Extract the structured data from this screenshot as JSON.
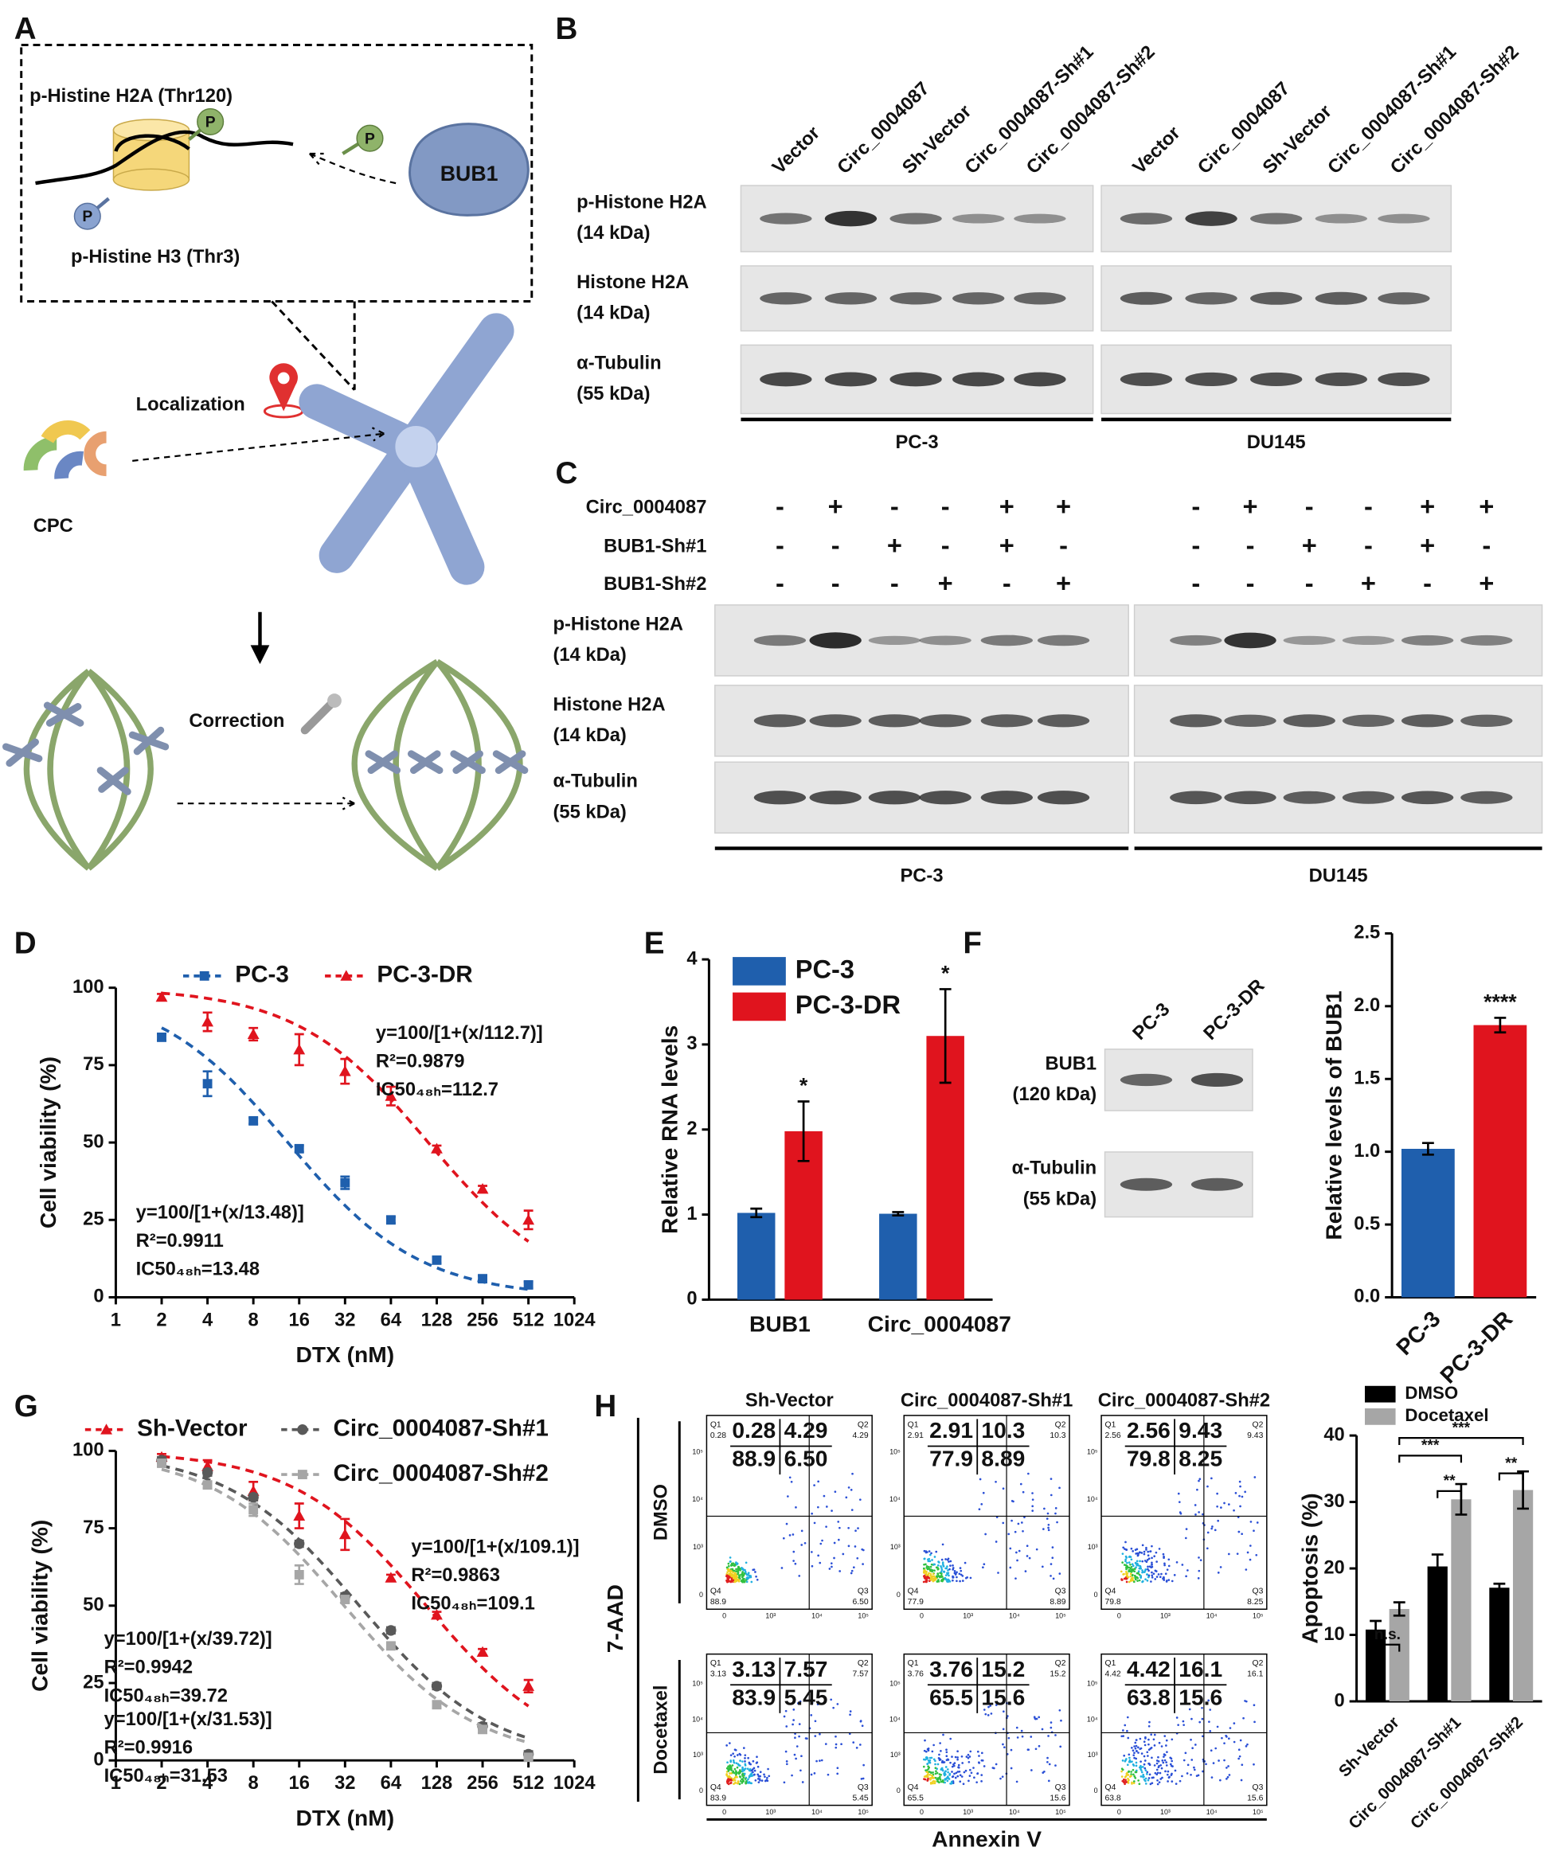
{
  "panel_a": {
    "label": "A",
    "texts": {
      "h2a": "p-Histine H2A (Thr120)",
      "h3": "p-Histine H3 (Thr3)",
      "p": "P",
      "bub1": "BUB1",
      "localization": "Localization",
      "cpc": "CPC",
      "correction": "Correction"
    }
  },
  "panel_b": {
    "label": "B",
    "lanes": [
      "Vector",
      "Circ_0004087",
      "Sh-Vector",
      "Circ_0004087-Sh#1",
      "Circ_0004087-Sh#2"
    ],
    "rows": [
      [
        "p-Histone H2A",
        "(14 kDa)"
      ],
      [
        "Histone H2A",
        "(14 kDa)"
      ],
      [
        "α-Tubulin",
        "(55 kDa)"
      ]
    ],
    "cell_lines": [
      "PC-3",
      "DU145"
    ]
  },
  "panel_c": {
    "label": "C",
    "conditions": [
      {
        "name": "Circ_0004087",
        "signs": [
          "-",
          "+",
          "-",
          "-",
          "+",
          "+"
        ]
      },
      {
        "name": "BUB1-Sh#1",
        "signs": [
          "-",
          "-",
          "+",
          "-",
          "+",
          "-"
        ]
      },
      {
        "name": "BUB1-Sh#2",
        "signs": [
          "-",
          "-",
          "-",
          "+",
          "-",
          "+"
        ]
      }
    ],
    "rows": [
      [
        "p-Histone H2A",
        "(14 kDa)"
      ],
      [
        "Histone H2A",
        "(14 kDa)"
      ],
      [
        "α-Tubulin",
        "(55 kDa)"
      ]
    ],
    "cell_lines": [
      "PC-3",
      "DU145"
    ]
  },
  "panel_f_blot": {
    "lanes": [
      "PC-3",
      "PC-3-DR"
    ],
    "rows": [
      [
        "BUB1",
        "(120 kDa)"
      ],
      [
        "α-Tubulin",
        "(55 kDa)"
      ]
    ]
  },
  "panel_h_flow": {
    "label": "H",
    "columns": [
      "Sh-Vector",
      "Circ_0004087-Sh#1",
      "Circ_0004087-Sh#2"
    ],
    "rows": [
      "DMSO",
      "Docetaxel"
    ],
    "y_label": "7-AAD",
    "x_label": "Annexin V",
    "quadrant_names": [
      "Q1",
      "Q2",
      "Q4",
      "Q3"
    ],
    "axis_ticks": [
      "0",
      "10³",
      "10⁴",
      "10⁵"
    ],
    "values": [
      [
        [
          "0.28",
          "4.29",
          "88.9",
          "6.50"
        ],
        [
          "2.91",
          "10.3",
          "77.9",
          "8.89"
        ],
        [
          "2.56",
          "9.43",
          "79.8",
          "8.25"
        ]
      ],
      [
        [
          "3.13",
          "7.57",
          "83.9",
          "5.45"
        ],
        [
          "3.76",
          "15.2",
          "65.5",
          "15.6"
        ],
        [
          "4.42",
          "16.1",
          "63.8",
          "15.6"
        ]
      ]
    ]
  },
  "chart_data": [
    {
      "type": "line",
      "panel": "D",
      "x_label": "DTX (nM)",
      "y_label": "Cell viability (%)",
      "xlog_base": 2,
      "xlim": [
        1,
        1024
      ],
      "xticks": [
        1,
        2,
        4,
        8,
        16,
        32,
        64,
        128,
        256,
        512,
        1024
      ],
      "ylim": [
        0,
        100
      ],
      "yticks": [
        0,
        25,
        50,
        75,
        100
      ],
      "x": [
        2,
        4,
        8,
        16,
        32,
        64,
        128,
        256,
        512
      ],
      "series": [
        {
          "name": "PC-3",
          "color": "#1f5fad",
          "marker": "square",
          "values": [
            84,
            69,
            57,
            48,
            37,
            25,
            12,
            6,
            4
          ],
          "errors": [
            1,
            4,
            1,
            1,
            2,
            1,
            1,
            1,
            1
          ],
          "fit": {
            "top": 100,
            "ic50": 13.48
          },
          "annotation": [
            "y=100/[1+(x/13.48)]",
            "R²=0.9911",
            "IC50₄₈ₕ=13.48"
          ]
        },
        {
          "name": "PC-3-DR",
          "color": "#e0141e",
          "marker": "triangle",
          "values": [
            97,
            89,
            85,
            80,
            73,
            65,
            48,
            35,
            25
          ],
          "errors": [
            1,
            3,
            2,
            5,
            4,
            3,
            1,
            1,
            3
          ],
          "fit": {
            "top": 100,
            "ic50": 112.7
          },
          "annotation": [
            "y=100/[1+(x/112.7)]",
            "R²=0.9879",
            "IC50₄₈ₕ=112.7"
          ]
        }
      ]
    },
    {
      "type": "bar",
      "panel": "E",
      "y_label": "Relative RNA levels",
      "categories": [
        "BUB1",
        "Circ_0004087"
      ],
      "ylim": [
        0,
        4
      ],
      "yticks": [
        0,
        1,
        2,
        3,
        4
      ],
      "series": [
        {
          "name": "PC-3",
          "color": "#1f5fad",
          "values": [
            1.02,
            1.01
          ],
          "errors": [
            0.05,
            0.02
          ]
        },
        {
          "name": "PC-3-DR",
          "color": "#e0141e",
          "values": [
            1.98,
            3.1
          ],
          "errors": [
            0.35,
            0.55
          ],
          "significance": [
            "*",
            "*"
          ]
        }
      ]
    },
    {
      "type": "bar",
      "panel": "F",
      "y_label": "Relative levels of BUB1",
      "categories": [
        "PC-3",
        "PC-3-DR"
      ],
      "values": [
        1.02,
        1.87
      ],
      "errors": [
        0.04,
        0.05
      ],
      "colors": [
        "#1f5fad",
        "#e0141e"
      ],
      "significance": [
        null,
        "****"
      ],
      "ylim": [
        0,
        2.5
      ],
      "yticks": [
        {
          "value": 0,
          "label": "0.0"
        },
        0.5,
        {
          "value": 1,
          "label": "1.0"
        },
        1.5,
        {
          "value": 2,
          "label": "2.0"
        },
        2.5
      ]
    },
    {
      "type": "line",
      "panel": "G",
      "x_label": "DTX (nM)",
      "y_label": "Cell viability (%)",
      "xlog_base": 2,
      "xlim": [
        1,
        1024
      ],
      "xticks": [
        1,
        2,
        4,
        8,
        16,
        32,
        64,
        128,
        256,
        512,
        1024
      ],
      "ylim": [
        0,
        100
      ],
      "yticks": [
        0,
        25,
        50,
        75,
        100
      ],
      "x": [
        2,
        4,
        8,
        16,
        32,
        64,
        128,
        256,
        512
      ],
      "series": [
        {
          "name": "Sh-Vector",
          "color": "#e0141e",
          "marker": "triangle",
          "values": [
            98,
            95,
            87,
            79,
            73,
            59,
            47,
            35,
            24
          ],
          "errors": [
            1,
            2,
            3,
            4,
            5,
            1,
            1,
            1,
            2
          ],
          "fit": {
            "top": 100,
            "ic50": 109.1
          },
          "annotation": [
            "y=100/[1+(x/109.1)]",
            "R²=0.9863",
            "IC50₄₈ₕ=109.1"
          ]
        },
        {
          "name": "Circ_0004087-Sh#1",
          "color": "#595959",
          "marker": "circle",
          "values": [
            97,
            93,
            85,
            70,
            53,
            42,
            24,
            11,
            2
          ],
          "errors": [
            1,
            1,
            1,
            1,
            1,
            1,
            1,
            1,
            1
          ],
          "fit": {
            "top": 100,
            "ic50": 39.72
          },
          "annotation": [
            "y=100/[1+(x/39.72)]",
            "R²=0.9942",
            "IC50₄₈ₕ=39.72"
          ]
        },
        {
          "name": "Circ_0004087-Sh#2",
          "color": "#a6a6a6",
          "marker": "square",
          "values": [
            96,
            89,
            81,
            60,
            52,
            37,
            18,
            10,
            1
          ],
          "errors": [
            1,
            1,
            2,
            3,
            1,
            1,
            1,
            1,
            1
          ],
          "fit": {
            "top": 100,
            "ic50": 31.53
          },
          "annotation": [
            "y=100/[1+(x/31.53)]",
            "R²=0.9916",
            "IC50₄₈ₕ=31.53"
          ]
        }
      ]
    },
    {
      "type": "bar",
      "y_label": "Apoptosis (%)",
      "categories": [
        "Sh-Vector",
        "Circ_0004087-Sh#1",
        "Circ_0004087-Sh#2"
      ],
      "ylim": [
        0,
        40
      ],
      "yticks": [
        0,
        10,
        20,
        30,
        40
      ],
      "series": [
        {
          "name": "DMSO",
          "color": "#000000",
          "values": [
            10.8,
            20.3,
            17.1
          ],
          "errors": [
            1.3,
            1.8,
            0.6
          ]
        },
        {
          "name": "Docetaxel",
          "color": "#a6a6a6",
          "values": [
            13.9,
            30.4,
            31.8
          ],
          "errors": [
            1.0,
            2.3,
            2.8
          ]
        }
      ],
      "comparisons": [
        "n.s.",
        "**",
        "**",
        "***",
        "***"
      ]
    }
  ]
}
